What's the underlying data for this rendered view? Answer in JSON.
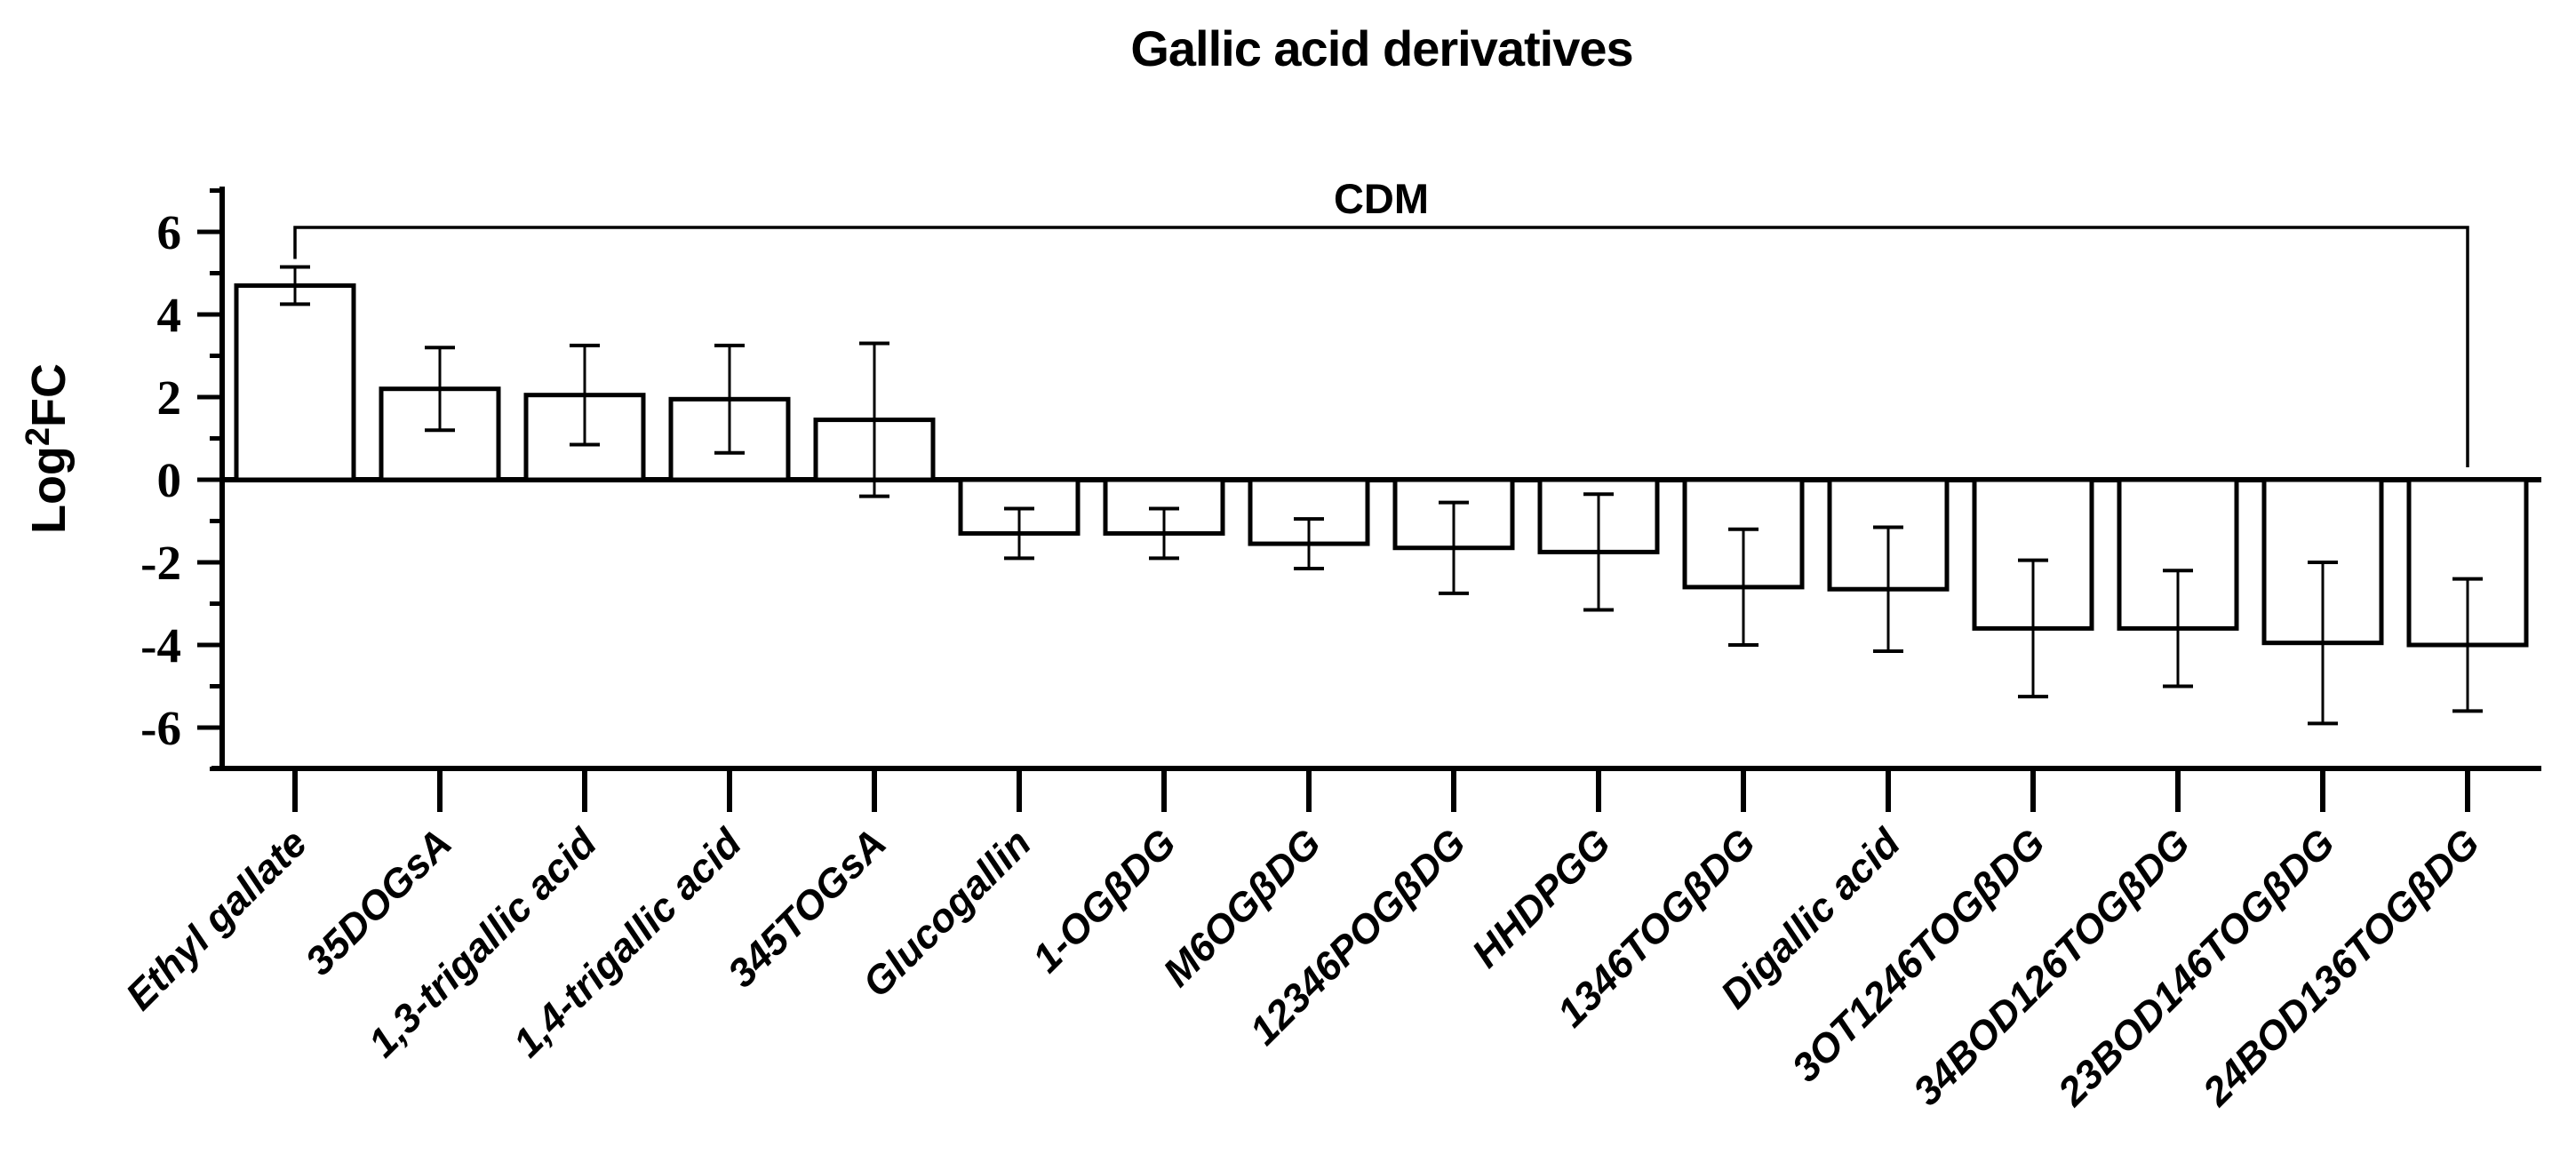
{
  "page": {
    "background_color": "#ffffff",
    "ink_color": "#000000"
  },
  "chart_data": {
    "type": "bar",
    "title": "Gallic acid derivatives",
    "condition_label": "CDM",
    "ylabel": {
      "prefix": "Log",
      "superscript": "2",
      "suffix": "FC"
    },
    "ylim": [
      -7,
      7
    ],
    "ytick_labels": [
      6,
      4,
      2,
      0,
      -2,
      -4,
      -6
    ],
    "minor_tick_step": 1,
    "grid": "off",
    "legend": "none",
    "bar_fill": "#ffffff",
    "bar_stroke": "#000000",
    "categories": [
      "Ethyl gallate",
      "35DOGsA",
      "1,3-trigallic acid",
      "1,4-trigallic acid",
      "345TOGsA",
      "Glucogallin",
      "1-OGβDG",
      "M6OGβDG",
      "12346POGβDG",
      "HHDPGG",
      "1346TOGβDG",
      "Digallic acid",
      "3OT1246TOGβDG",
      "34BOD126TOGβDG",
      "23BOD146TOGβDG",
      "24BOD136TOGβDG"
    ],
    "values": [
      4.7,
      2.2,
      2.05,
      1.95,
      1.45,
      -1.3,
      -1.3,
      -1.55,
      -1.65,
      -1.75,
      -2.6,
      -2.65,
      -3.6,
      -3.6,
      -3.95,
      -4.0
    ],
    "errors": [
      0.45,
      1.0,
      1.2,
      1.3,
      1.85,
      0.6,
      0.6,
      0.6,
      1.1,
      1.4,
      1.4,
      1.5,
      1.65,
      1.4,
      1.95,
      1.6
    ],
    "significance_bracket": {
      "from_category": "Ethyl gallate",
      "from_index": 0,
      "to_category": "24BOD136TOGβDG",
      "to_index": 15,
      "label": "CDM"
    }
  }
}
